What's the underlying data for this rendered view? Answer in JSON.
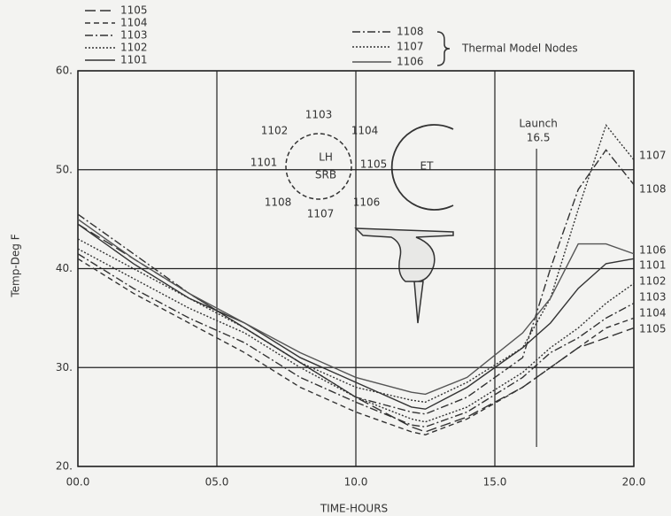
{
  "chart_data": {
    "type": "line",
    "x_label": "TIME-HOURS",
    "y_label": "Temp-Deg F",
    "x": [
      0,
      2,
      4,
      6,
      8,
      10,
      12,
      12.5,
      14,
      16,
      17,
      18,
      19,
      20
    ],
    "series": [
      {
        "name": "1105",
        "color": "#333333",
        "dash": "long-dash",
        "values": [
          44.5,
          41,
          37.5,
          34,
          30.5,
          27,
          24,
          23.5,
          25,
          28,
          30,
          32,
          33,
          34
        ]
      },
      {
        "name": "1104",
        "color": "#333333",
        "dash": "dash",
        "values": [
          41,
          37.5,
          34.5,
          31.5,
          28,
          25.5,
          23.5,
          23.2,
          24.8,
          28,
          30,
          32,
          34,
          35
        ]
      },
      {
        "name": "1103",
        "color": "#333333",
        "dash": "dash-dot",
        "values": [
          41.5,
          38,
          35,
          32.5,
          29,
          26.5,
          24.2,
          24,
          25.5,
          29,
          31.5,
          33,
          35,
          36.5
        ]
      },
      {
        "name": "1102",
        "color": "#333333",
        "dash": "dot",
        "values": [
          42,
          39,
          36,
          33.5,
          30,
          27,
          24.8,
          24.5,
          26,
          29.5,
          32,
          34,
          36.5,
          38.5
        ]
      },
      {
        "name": "1101",
        "color": "#333333",
        "dash": "solid",
        "values": [
          44.5,
          40.5,
          37,
          34.5,
          31,
          28.5,
          26,
          25.8,
          28,
          32,
          34.5,
          38,
          40.5,
          41
        ]
      },
      {
        "name": "1108",
        "color": "#333333",
        "dash": "dash-dot",
        "values": [
          45.5,
          41.5,
          37.5,
          34,
          30.5,
          27,
          25.5,
          25.3,
          27,
          31,
          40,
          48,
          52,
          48.5
        ]
      },
      {
        "name": "1107",
        "color": "#333333",
        "dash": "dot",
        "values": [
          43,
          40,
          37,
          34,
          30.5,
          28,
          26.7,
          26.5,
          28.5,
          32,
          37,
          46,
          54.5,
          51
        ]
      },
      {
        "name": "1106",
        "color": "#555555",
        "dash": "solid",
        "values": [
          45,
          41,
          37.5,
          34.5,
          31.5,
          29,
          27.5,
          27.3,
          29,
          33.5,
          37,
          42.5,
          42.5,
          41.5
        ]
      }
    ],
    "xlim": [
      0,
      20
    ],
    "xticks": [
      {
        "value": 0,
        "label": "00.0"
      },
      {
        "value": 5,
        "label": "05.0"
      },
      {
        "value": 10,
        "label": "10.0"
      },
      {
        "value": 15,
        "label": "15.0"
      },
      {
        "value": 20,
        "label": "20.0"
      }
    ],
    "ylim": [
      20,
      60
    ],
    "yticks": [
      {
        "value": 20,
        "label": "20."
      },
      {
        "value": 30,
        "label": "30."
      },
      {
        "value": 40,
        "label": "40."
      },
      {
        "value": 50,
        "label": "50."
      },
      {
        "value": 60,
        "label": "60."
      }
    ],
    "grid": true,
    "legend_caption": "Thermal Model Nodes",
    "launch": {
      "label": "Launch",
      "x": 16.5
    },
    "diagram": {
      "labels": [
        "1101",
        "1102",
        "1103",
        "1104",
        "1105",
        "1106",
        "1107",
        "1108"
      ],
      "srb": [
        "LH",
        "SRB"
      ],
      "tank": "ET"
    }
  }
}
